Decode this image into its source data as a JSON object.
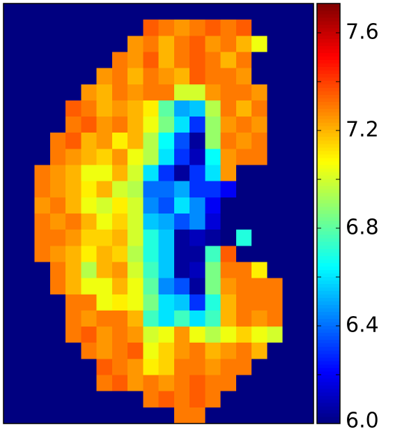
{
  "chart_data": {
    "type": "heatmap",
    "colormap": "jet",
    "clim": [
      6.0,
      7.72
    ],
    "cbar_ticks": [
      {
        "value": 6,
        "label": "6.0"
      },
      6.4,
      6.8,
      7.2,
      7.6
    ],
    "cbar_minor_ticks": [
      6.2,
      6.6,
      7.0,
      7.4
    ],
    "z": [
      [
        6.0,
        6.0,
        6.0,
        6.0,
        6.0,
        6.0,
        6.0,
        6.0,
        6.0,
        6.0,
        6.0,
        6.0,
        6.0,
        6.0,
        6.0,
        6.0,
        6.0,
        6.0,
        6.0,
        6.0
      ],
      [
        6.0,
        6.0,
        6.0,
        6.0,
        6.0,
        6.0,
        6.0,
        6.0,
        6.0,
        7.35,
        7.3,
        7.25,
        7.3,
        7.35,
        7.3,
        7.35,
        6.0,
        6.0,
        6.0,
        6.0
      ],
      [
        6.0,
        6.0,
        6.0,
        6.0,
        6.0,
        6.0,
        6.0,
        6.0,
        7.25,
        7.3,
        7.2,
        7.3,
        7.35,
        7.25,
        7.3,
        7.2,
        7.05,
        6.0,
        6.0,
        6.0
      ],
      [
        6.0,
        6.0,
        6.0,
        6.0,
        6.0,
        6.0,
        6.0,
        7.3,
        7.25,
        7.35,
        7.2,
        7.3,
        7.35,
        7.3,
        7.2,
        7.3,
        6.0,
        6.0,
        6.0,
        6.0
      ],
      [
        6.0,
        6.0,
        6.0,
        6.0,
        6.0,
        6.0,
        7.25,
        7.3,
        7.2,
        7.3,
        7.25,
        7.2,
        7.35,
        7.3,
        7.3,
        7.25,
        6.0,
        6.0,
        6.0,
        6.0
      ],
      [
        6.0,
        6.0,
        6.0,
        6.0,
        6.0,
        7.25,
        7.2,
        7.3,
        7.25,
        7.3,
        7.3,
        7.0,
        7.0,
        7.25,
        7.3,
        7.3,
        7.25,
        6.0,
        6.0,
        6.0
      ],
      [
        6.0,
        6.0,
        6.0,
        6.0,
        7.35,
        7.3,
        7.2,
        7.25,
        7.2,
        7.1,
        6.8,
        6.5,
        6.55,
        6.95,
        7.3,
        7.2,
        7.3,
        6.0,
        6.0,
        6.0
      ],
      [
        6.0,
        6.0,
        6.0,
        6.0,
        7.3,
        7.35,
        7.25,
        7.3,
        7.2,
        7.05,
        6.85,
        6.6,
        6.3,
        6.9,
        7.25,
        7.3,
        7.25,
        6.0,
        6.0,
        6.0
      ],
      [
        6.0,
        6.0,
        6.0,
        7.3,
        7.35,
        7.2,
        7.25,
        7.1,
        7.2,
        6.95,
        6.65,
        6.35,
        6.05,
        6.9,
        7.3,
        7.25,
        7.3,
        6.0,
        6.0,
        6.0
      ],
      [
        6.0,
        6.0,
        6.0,
        7.3,
        7.25,
        7.2,
        7.15,
        7.25,
        7.05,
        6.95,
        6.6,
        6.3,
        6.1,
        6.65,
        7.25,
        7.3,
        7.3,
        6.0,
        6.0,
        6.0
      ],
      [
        6.0,
        6.0,
        7.3,
        7.25,
        7.2,
        7.05,
        7.05,
        7.2,
        7.0,
        6.6,
        6.3,
        6.05,
        6.3,
        6.6,
        7.25,
        6.0,
        6.0,
        6.0,
        6.0,
        6.0
      ],
      [
        6.0,
        6.0,
        7.3,
        7.25,
        7.2,
        7.1,
        7.2,
        7.0,
        6.95,
        6.4,
        6.4,
        6.5,
        6.3,
        6.3,
        6.2,
        6.0,
        6.0,
        6.0,
        6.0,
        6.0
      ],
      [
        6.0,
        6.0,
        7.25,
        7.3,
        7.2,
        7.05,
        7.0,
        7.1,
        7.0,
        6.45,
        6.35,
        6.6,
        6.45,
        6.2,
        6.0,
        6.0,
        6.0,
        6.0,
        6.0,
        6.0
      ],
      [
        6.0,
        6.0,
        7.3,
        7.25,
        7.3,
        7.2,
        7.05,
        7.15,
        7.0,
        6.55,
        6.5,
        6.35,
        6.45,
        6.15,
        6.0,
        6.0,
        6.0,
        6.0,
        6.0,
        6.0
      ],
      [
        6.0,
        6.0,
        7.3,
        7.3,
        7.25,
        7.15,
        7.15,
        7.2,
        7.0,
        6.7,
        6.55,
        6.05,
        6.1,
        6.05,
        6.0,
        6.7,
        6.0,
        6.0,
        6.0,
        6.0
      ],
      [
        6.0,
        6.0,
        7.3,
        7.25,
        7.2,
        7.1,
        7.2,
        7.15,
        6.95,
        6.7,
        6.55,
        6.05,
        6.05,
        6.75,
        7.35,
        6.0,
        6.0,
        6.0,
        6.0,
        6.0
      ],
      [
        6.0,
        6.0,
        6.0,
        7.3,
        7.2,
        6.95,
        7.2,
        7.25,
        7.0,
        6.75,
        6.55,
        6.05,
        6.1,
        6.85,
        7.3,
        7.3,
        7.1,
        6.0,
        6.0,
        6.0
      ],
      [
        6.0,
        6.0,
        6.0,
        7.3,
        7.2,
        7.05,
        7.05,
        7.2,
        7.05,
        6.8,
        6.45,
        6.35,
        6.05,
        6.85,
        7.25,
        7.3,
        7.3,
        7.3,
        6.0,
        6.0
      ],
      [
        6.0,
        6.0,
        6.0,
        6.0,
        7.3,
        7.3,
        7.05,
        7.1,
        7.05,
        6.85,
        6.6,
        6.55,
        6.3,
        6.7,
        7.2,
        7.3,
        7.3,
        7.3,
        6.0,
        6.0
      ],
      [
        6.0,
        6.0,
        6.0,
        6.0,
        7.3,
        7.25,
        7.3,
        7.3,
        7.2,
        6.75,
        6.6,
        6.75,
        6.6,
        6.75,
        7.2,
        7.3,
        7.25,
        7.3,
        6.0,
        6.0
      ],
      [
        6.0,
        6.0,
        6.0,
        6.0,
        7.3,
        7.35,
        7.25,
        7.3,
        7.25,
        7.0,
        7.05,
        7.25,
        7.05,
        6.95,
        7.05,
        7.15,
        7.05,
        7.0,
        6.0,
        6.0
      ],
      [
        6.0,
        6.0,
        6.0,
        6.0,
        6.0,
        7.3,
        7.25,
        7.3,
        7.35,
        7.05,
        7.15,
        7.25,
        7.3,
        7.2,
        7.25,
        7.3,
        7.2,
        6.0,
        6.0,
        6.0
      ],
      [
        6.0,
        6.0,
        6.0,
        6.0,
        6.0,
        6.0,
        7.35,
        7.3,
        7.25,
        7.1,
        7.15,
        7.3,
        7.3,
        7.25,
        7.3,
        7.3,
        6.0,
        6.0,
        6.0,
        6.0
      ],
      [
        6.0,
        6.0,
        6.0,
        6.0,
        6.0,
        6.0,
        7.3,
        7.35,
        7.25,
        7.3,
        7.25,
        7.3,
        7.35,
        7.3,
        7.3,
        6.0,
        6.0,
        6.0,
        6.0,
        6.0
      ],
      [
        6.0,
        6.0,
        6.0,
        6.0,
        6.0,
        6.0,
        6.0,
        6.0,
        6.0,
        7.3,
        7.35,
        7.3,
        7.35,
        7.3,
        6.0,
        6.0,
        6.0,
        6.0,
        6.0,
        6.0
      ],
      [
        6.0,
        6.0,
        6.0,
        6.0,
        6.0,
        6.0,
        6.0,
        6.0,
        6.0,
        6.0,
        6.0,
        7.3,
        7.3,
        6.0,
        6.0,
        6.0,
        6.0,
        6.0,
        6.0,
        6.0
      ]
    ]
  }
}
